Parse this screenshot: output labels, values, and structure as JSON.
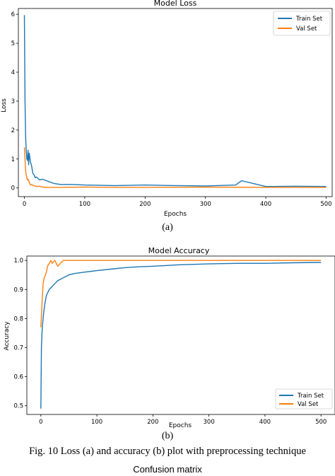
{
  "chart_data": [
    {
      "type": "line",
      "title": "Model Loss",
      "xlabel": "Epochs",
      "ylabel": "Loss",
      "xlim": [
        -10,
        510
      ],
      "ylim": [
        -0.3,
        6.2
      ],
      "xticks": [
        0,
        100,
        200,
        300,
        400,
        500
      ],
      "yticks": [
        0,
        1,
        2,
        3,
        4,
        5,
        6
      ],
      "legend_position": "top-right",
      "grid": false,
      "series": [
        {
          "name": "Train Set",
          "color": "#1f77b4",
          "x": [
            0,
            1,
            2,
            3,
            4,
            5,
            6,
            7,
            8,
            10,
            12,
            14,
            16,
            18,
            20,
            25,
            30,
            40,
            50,
            60,
            80,
            100,
            150,
            200,
            250,
            300,
            350,
            360,
            400,
            450,
            500
          ],
          "values": [
            5.97,
            3.0,
            1.8,
            1.3,
            1.0,
            0.95,
            1.3,
            0.8,
            1.2,
            0.9,
            0.75,
            0.5,
            0.45,
            0.35,
            0.38,
            0.28,
            0.3,
            0.22,
            0.15,
            0.12,
            0.12,
            0.1,
            0.08,
            0.1,
            0.08,
            0.07,
            0.1,
            0.25,
            0.05,
            0.06,
            0.05
          ]
        },
        {
          "name": "Val Set",
          "color": "#ff7f0e",
          "x": [
            0,
            1,
            2,
            3,
            4,
            5,
            6,
            8,
            10,
            12,
            15,
            20,
            25,
            30,
            40,
            60,
            100,
            150,
            200,
            300,
            400,
            500
          ],
          "values": [
            1.4,
            1.0,
            0.6,
            0.45,
            0.35,
            0.28,
            0.3,
            0.2,
            0.1,
            0.12,
            0.08,
            0.05,
            0.06,
            0.03,
            0.02,
            0.02,
            0.03,
            0.02,
            0.02,
            0.03,
            0.02,
            0.02
          ]
        }
      ]
    },
    {
      "type": "line",
      "title": "Model Accuracy",
      "xlabel": "Epochs",
      "ylabel": "Accuracy",
      "xlim": [
        -25,
        525
      ],
      "ylim": [
        0.47,
        1.015
      ],
      "xticks": [
        0,
        100,
        200,
        300,
        400,
        500
      ],
      "yticks": [
        0.5,
        0.6,
        0.7,
        0.8,
        0.9,
        1.0
      ],
      "legend_position": "bottom-right",
      "grid": false,
      "series": [
        {
          "name": "Train Set",
          "color": "#1f77b4",
          "x": [
            0,
            1,
            2,
            3,
            4,
            5,
            7,
            10,
            15,
            20,
            25,
            30,
            40,
            50,
            60,
            80,
            100,
            125,
            150,
            175,
            200,
            250,
            300,
            350,
            400,
            450,
            500
          ],
          "values": [
            0.49,
            0.7,
            0.75,
            0.78,
            0.8,
            0.82,
            0.85,
            0.88,
            0.9,
            0.91,
            0.92,
            0.93,
            0.94,
            0.95,
            0.955,
            0.96,
            0.965,
            0.97,
            0.975,
            0.978,
            0.98,
            0.985,
            0.988,
            0.99,
            0.99,
            0.992,
            0.993
          ]
        },
        {
          "name": "Val Set",
          "color": "#ff7f0e",
          "x": [
            0,
            2,
            4,
            6,
            8,
            10,
            12,
            15,
            18,
            20,
            25,
            30,
            40,
            50,
            100,
            150,
            200,
            300,
            400,
            500
          ],
          "values": [
            0.77,
            0.85,
            0.92,
            0.94,
            0.95,
            0.96,
            0.98,
            0.99,
            1.0,
            0.99,
            1.0,
            0.98,
            1.0,
            1.0,
            1.0,
            1.0,
            1.0,
            1.0,
            1.0,
            1.0
          ]
        }
      ]
    }
  ],
  "captions": {
    "sub_a": "(a)",
    "sub_b": "(b)",
    "figure": "Fig. 10  Loss (a) and accuracy (b) plot with preprocessing technique",
    "next_title": "Confusion matrix"
  }
}
